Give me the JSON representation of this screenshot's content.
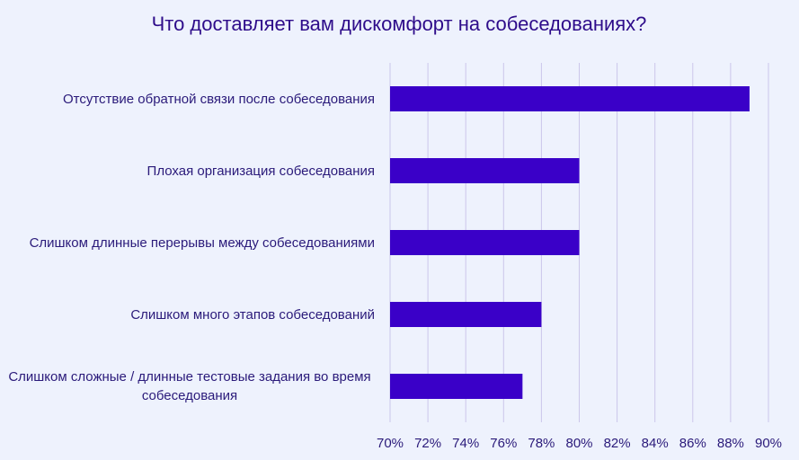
{
  "chart_data": {
    "type": "bar",
    "orientation": "horizontal",
    "title": "Что доставляет вам дискомфорт на собеседованиях?",
    "categories": [
      "Отсутствие обратной связи после собеседования",
      "Плохая организация собеседования",
      "Слишком длинные перерывы между собеседованиями",
      "Слишком много этапов собеседований",
      "Слишком сложные / длинные тестовые задания во время собеседования"
    ],
    "values": [
      89,
      80,
      80,
      78,
      77
    ],
    "color": "#3a00c8",
    "xlim": [
      70,
      90
    ],
    "xticks": [
      {
        "value": 70,
        "label": "70%"
      },
      {
        "value": 72,
        "label": "72%"
      },
      {
        "value": 74,
        "label": "74%"
      },
      {
        "value": 76,
        "label": "76%"
      },
      {
        "value": 78,
        "label": "78%"
      },
      {
        "value": 80,
        "label": "80%"
      },
      {
        "value": 82,
        "label": "82%"
      },
      {
        "value": 84,
        "label": "84%"
      },
      {
        "value": 86,
        "label": "86%"
      },
      {
        "value": 88,
        "label": "88%"
      },
      {
        "value": 90,
        "label": "90%"
      }
    ],
    "grid": true
  }
}
